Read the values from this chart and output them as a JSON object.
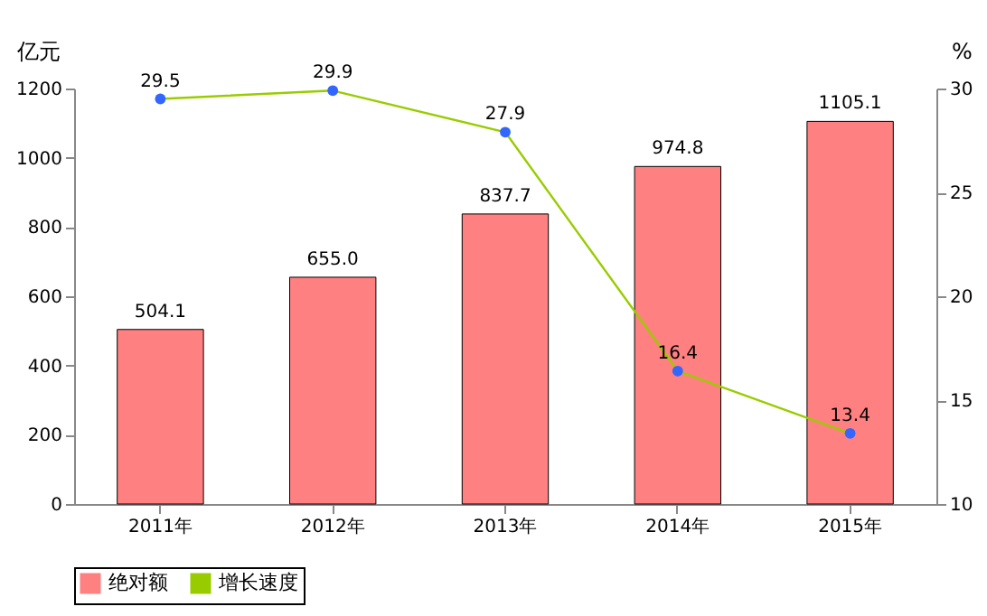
{
  "chart_data": {
    "type": "bar",
    "categories": [
      "2011年",
      "2012年",
      "2013年",
      "2014年",
      "2015年"
    ],
    "ylabel": "亿元",
    "y2label": "%",
    "ylim": [
      0,
      1200
    ],
    "yticks": [
      0,
      200,
      400,
      600,
      800,
      1000,
      1200
    ],
    "y2lim": [
      10,
      30
    ],
    "y2ticks": [
      10,
      15,
      20,
      25,
      30
    ],
    "series": [
      {
        "name": "绝对额",
        "color": "#ff8080",
        "values": [
          504.1,
          655.0,
          837.7,
          974.8,
          1105.1
        ],
        "value_labels": [
          "504.1",
          "655.0",
          "837.7",
          "974.8",
          "1105.1"
        ]
      },
      {
        "name": "增长速度",
        "type": "line",
        "axis": "y2",
        "color": "#99cc00",
        "marker": "circle",
        "values": [
          29.5,
          29.9,
          27.9,
          16.4,
          13.4
        ],
        "value_labels": [
          "29.5",
          "29.9",
          "27.9",
          "16.4",
          "13.4"
        ]
      }
    ],
    "legend": "bottom",
    "grid": false
  }
}
